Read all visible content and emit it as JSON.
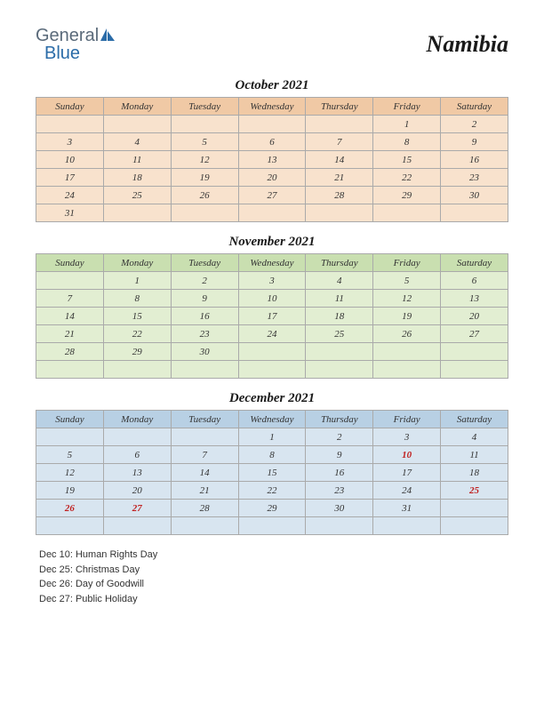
{
  "logo": {
    "general": "General",
    "blue": "Blue",
    "sail_color": "#2b6ca8"
  },
  "country": "Namibia",
  "day_headers": [
    "Sunday",
    "Monday",
    "Tuesday",
    "Wednesday",
    "Thursday",
    "Friday",
    "Saturday"
  ],
  "months": [
    {
      "title": "October 2021",
      "class": "oct",
      "header_bg": "#f0c9a5",
      "cell_bg": "#f8e2cd",
      "weeks": [
        [
          "",
          "",
          "",
          "",
          "",
          "1",
          "2"
        ],
        [
          "3",
          "4",
          "5",
          "6",
          "7",
          "8",
          "9"
        ],
        [
          "10",
          "11",
          "12",
          "13",
          "14",
          "15",
          "16"
        ],
        [
          "17",
          "18",
          "19",
          "20",
          "21",
          "22",
          "23"
        ],
        [
          "24",
          "25",
          "26",
          "27",
          "28",
          "29",
          "30"
        ],
        [
          "31",
          "",
          "",
          "",
          "",
          "",
          ""
        ]
      ],
      "holidays": []
    },
    {
      "title": "November 2021",
      "class": "nov",
      "header_bg": "#c9dfb0",
      "cell_bg": "#e2eed2",
      "weeks": [
        [
          "",
          "1",
          "2",
          "3",
          "4",
          "5",
          "6"
        ],
        [
          "7",
          "8",
          "9",
          "10",
          "11",
          "12",
          "13"
        ],
        [
          "14",
          "15",
          "16",
          "17",
          "18",
          "19",
          "20"
        ],
        [
          "21",
          "22",
          "23",
          "24",
          "25",
          "26",
          "27"
        ],
        [
          "28",
          "29",
          "30",
          "",
          "",
          "",
          ""
        ],
        [
          "",
          "",
          "",
          "",
          "",
          "",
          ""
        ]
      ],
      "holidays": []
    },
    {
      "title": "December 2021",
      "class": "dec",
      "header_bg": "#b8d0e4",
      "cell_bg": "#d8e5f0",
      "weeks": [
        [
          "",
          "",
          "",
          "1",
          "2",
          "3",
          "4"
        ],
        [
          "5",
          "6",
          "7",
          "8",
          "9",
          "10",
          "11"
        ],
        [
          "12",
          "13",
          "14",
          "15",
          "16",
          "17",
          "18"
        ],
        [
          "19",
          "20",
          "21",
          "22",
          "23",
          "24",
          "25"
        ],
        [
          "26",
          "27",
          "28",
          "29",
          "30",
          "31",
          ""
        ],
        [
          "",
          "",
          "",
          "",
          "",
          "",
          ""
        ]
      ],
      "holidays": [
        "10",
        "25",
        "26",
        "27"
      ]
    }
  ],
  "holiday_list": [
    "Dec 10: Human Rights Day",
    "Dec 25: Christmas Day",
    "Dec 26: Day of Goodwill",
    "Dec 27: Public Holiday"
  ],
  "style": {
    "page_bg": "#ffffff",
    "border_color": "#aaaaaa",
    "text_color": "#333333",
    "holiday_color": "#c02020",
    "cell_fontsize": 11,
    "title_fontsize": 15,
    "country_fontsize": 26
  }
}
